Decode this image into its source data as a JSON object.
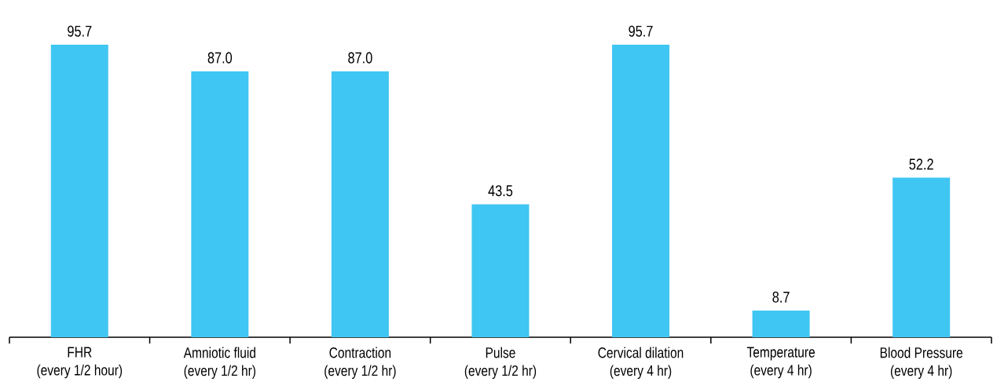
{
  "chart_data": {
    "type": "bar",
    "categories": [
      "FHR\n(every 1/2 hour)",
      "Amniotic fluid\n(every 1/2 hr)",
      "Contraction\n(every 1/2 hr)",
      "Pulse\n(every 1/2 hr)",
      "Cervical dilation\n(every 4 hr)",
      "Temperature\n(every 4 hr)",
      "Blood Pressure\n(every 4 hr)"
    ],
    "values": [
      95.7,
      87.0,
      87.0,
      43.5,
      95.7,
      8.7,
      52.2
    ],
    "value_labels": [
      "95.7",
      "87.0",
      "87.0",
      "43.5",
      "95.7",
      "8.7",
      "52.2"
    ],
    "color": "#40c6f2"
  }
}
